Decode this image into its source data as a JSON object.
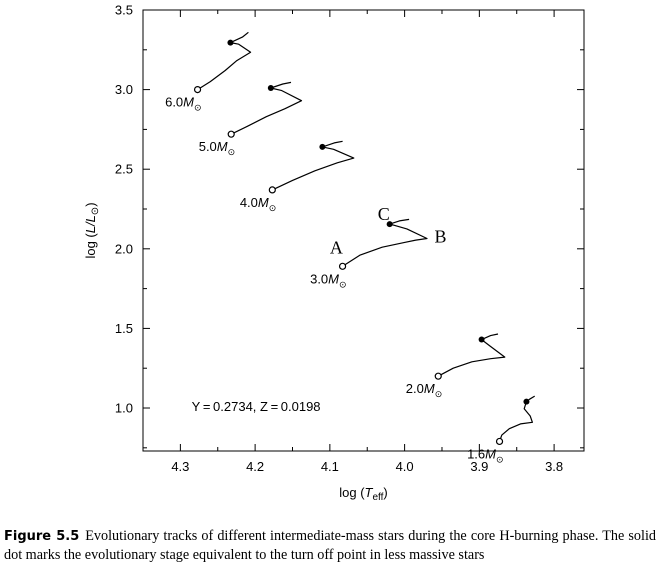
{
  "chart_data": {
    "type": "line",
    "title": "",
    "xlabel": {
      "prefix": "log (",
      "var": "T",
      "sub": "eff",
      "suffix": ")"
    },
    "ylabel": {
      "prefix": "log (",
      "var": "L/L",
      "sub": "⊙",
      "suffix": ")"
    },
    "xlim": [
      4.35,
      3.76
    ],
    "ylim": [
      0.73,
      3.5
    ],
    "xticks": [
      4.3,
      4.2,
      4.1,
      4.0,
      3.9,
      3.8
    ],
    "xtick_labels": [
      "4.3",
      "4.2",
      "4.1",
      "4.0",
      "3.9",
      "3.8"
    ],
    "yticks": [
      1.0,
      1.5,
      2.0,
      2.5,
      3.0,
      3.5
    ],
    "ytick_labels": [
      "1.0",
      "1.5",
      "2.0",
      "2.5",
      "3.0",
      "3.5"
    ],
    "grid": false,
    "series": [
      {
        "name": "6.0M⊙",
        "mass_value": "6.0",
        "points": [
          [
            4.277,
            3.0
          ],
          [
            4.26,
            3.05
          ],
          [
            4.24,
            3.12
          ],
          [
            4.225,
            3.18
          ],
          [
            4.206,
            3.235
          ],
          [
            4.222,
            3.285
          ],
          [
            4.233,
            3.295
          ],
          [
            4.217,
            3.33
          ],
          [
            4.209,
            3.36
          ]
        ],
        "zams": [
          4.277,
          3.0
        ],
        "turnoff": [
          4.233,
          3.295
        ]
      },
      {
        "name": "5.0M⊙",
        "mass_value": "5.0",
        "points": [
          [
            4.232,
            2.72
          ],
          [
            4.21,
            2.77
          ],
          [
            4.185,
            2.83
          ],
          [
            4.16,
            2.88
          ],
          [
            4.138,
            2.93
          ],
          [
            4.165,
            2.995
          ],
          [
            4.179,
            3.01
          ],
          [
            4.163,
            3.035
          ],
          [
            4.152,
            3.045
          ]
        ],
        "zams": [
          4.232,
          2.72
        ],
        "turnoff": [
          4.179,
          3.01
        ]
      },
      {
        "name": "4.0M⊙",
        "mass_value": "4.0",
        "points": [
          [
            4.177,
            2.37
          ],
          [
            4.15,
            2.43
          ],
          [
            4.12,
            2.49
          ],
          [
            4.09,
            2.54
          ],
          [
            4.068,
            2.57
          ],
          [
            4.095,
            2.625
          ],
          [
            4.11,
            2.64
          ],
          [
            4.094,
            2.665
          ],
          [
            4.083,
            2.675
          ]
        ],
        "zams": [
          4.177,
          2.37
        ],
        "turnoff": [
          4.11,
          2.64
        ]
      },
      {
        "name": "3.0M⊙",
        "mass_value": "3.0",
        "points": [
          [
            4.083,
            1.89
          ],
          [
            4.06,
            1.96
          ],
          [
            4.03,
            2.01
          ],
          [
            4.0,
            2.04
          ],
          [
            3.985,
            2.055
          ],
          [
            3.97,
            2.065
          ],
          [
            3.997,
            2.125
          ],
          [
            4.012,
            2.145
          ],
          [
            4.02,
            2.155
          ],
          [
            4.007,
            2.175
          ],
          [
            3.994,
            2.185
          ]
        ],
        "zams": [
          4.083,
          1.89
        ],
        "turnoff": [
          4.02,
          2.155
        ]
      },
      {
        "name": "2.0M⊙",
        "mass_value": "2.0",
        "points": [
          [
            3.955,
            1.2
          ],
          [
            3.935,
            1.25
          ],
          [
            3.91,
            1.29
          ],
          [
            3.885,
            1.31
          ],
          [
            3.866,
            1.32
          ],
          [
            3.886,
            1.39
          ],
          [
            3.897,
            1.43
          ],
          [
            3.885,
            1.455
          ],
          [
            3.875,
            1.465
          ]
        ],
        "zams": [
          3.955,
          1.2
        ],
        "turnoff": [
          3.897,
          1.43
        ]
      },
      {
        "name": "1.6M⊙",
        "mass_value": "1.6",
        "points": [
          [
            3.873,
            0.79
          ],
          [
            3.87,
            0.83
          ],
          [
            3.86,
            0.87
          ],
          [
            3.845,
            0.9
          ],
          [
            3.829,
            0.91
          ],
          [
            3.832,
            0.95
          ],
          [
            3.84,
            0.995
          ],
          [
            3.837,
            1.04
          ],
          [
            3.833,
            1.055
          ],
          [
            3.826,
            1.075
          ]
        ],
        "zams": [
          3.873,
          0.79
        ],
        "turnoff": [
          3.837,
          1.04
        ]
      }
    ],
    "annotations": [
      {
        "text": "A",
        "x": 4.1,
        "y": 1.97
      },
      {
        "text": "B",
        "x": 3.96,
        "y": 2.04
      },
      {
        "text": "C",
        "x": 4.036,
        "y": 2.18
      },
      {
        "text": "Y = 0.2734, Z = 0.0198",
        "x": 4.285,
        "y": 0.98
      }
    ]
  },
  "caption": {
    "title": "Figure 5.5",
    "text": "Evolutionary tracks of different intermediate-mass stars during the core H-burning phase. The solid dot marks the evolutionary stage equivalent to the turn off point in less massive stars"
  },
  "colors": {
    "line": "#000000",
    "background": "#ffffff"
  }
}
